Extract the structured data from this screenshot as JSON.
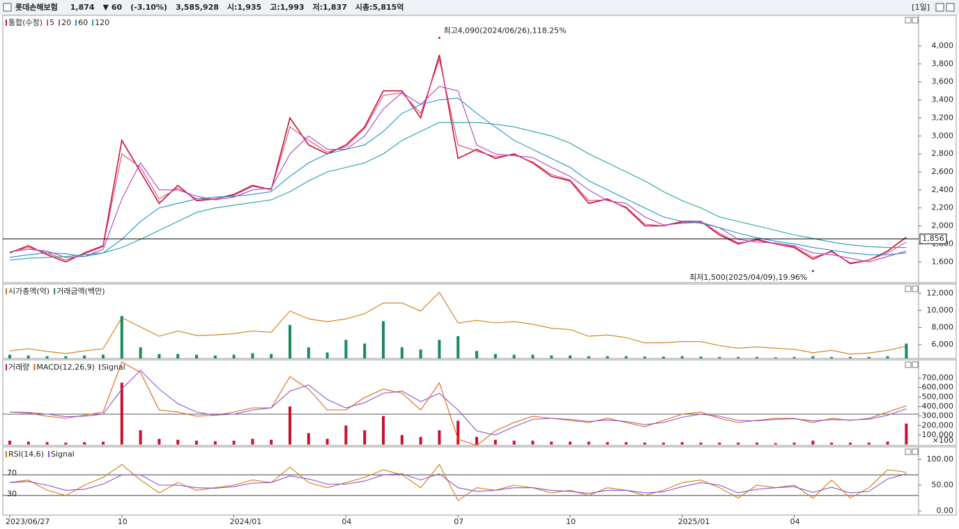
{
  "header": {
    "title": "롯데손해보험",
    "items": [
      {
        "text": "1,874",
        "color": "#1f3fa0"
      },
      {
        "text": "▼ 60",
        "color": "#1f3fa0"
      },
      {
        "text": "(-3.10%)",
        "color": "#1f3fa0"
      },
      {
        "text": "3,585,928",
        "color": "#222222"
      },
      {
        "text": "시:1,935",
        "color": "#222222"
      },
      {
        "text": "고:1,993",
        "color": "#222222"
      },
      {
        "text": "저:1,837",
        "color": "#222222"
      },
      {
        "text": "시총:5,815억",
        "color": "#222222"
      }
    ],
    "period": "[1일]"
  },
  "chart_data": [
    {
      "type": "line",
      "legend": "top-left",
      "series": [
        {
          "name": "통합(수정)",
          "color": "#c8102e",
          "values": [
            1700,
            1780,
            1680,
            1600,
            1700,
            1780,
            2950,
            2600,
            2250,
            2450,
            2280,
            2300,
            2350,
            2450,
            2400,
            3200,
            2900,
            2800,
            2900,
            3100,
            3500,
            3500,
            3200,
            3900,
            2750,
            2850,
            2750,
            2800,
            2700,
            2550,
            2500,
            2250,
            2300,
            2200,
            2000,
            2000,
            2050,
            2050,
            1900,
            1800,
            1850,
            1800,
            1760,
            1630,
            1720,
            1580,
            1620,
            1720,
            1874
          ]
        },
        {
          "name": "5",
          "color": "#e0457b",
          "values": [
            1710,
            1760,
            1700,
            1620,
            1690,
            1770,
            2800,
            2650,
            2300,
            2420,
            2300,
            2300,
            2340,
            2440,
            2400,
            3100,
            2950,
            2820,
            2880,
            3080,
            3450,
            3480,
            3250,
            3850,
            2900,
            2830,
            2770,
            2790,
            2710,
            2570,
            2510,
            2280,
            2290,
            2210,
            2020,
            2000,
            2040,
            2050,
            1920,
            1810,
            1840,
            1800,
            1770,
            1650,
            1710,
            1590,
            1620,
            1700,
            1820
          ]
        },
        {
          "name": "20",
          "color": "#b040c0",
          "values": [
            1710,
            1740,
            1720,
            1650,
            1660,
            1740,
            2300,
            2700,
            2400,
            2400,
            2330,
            2290,
            2320,
            2400,
            2420,
            2800,
            3000,
            2850,
            2850,
            3000,
            3300,
            3480,
            3350,
            3550,
            3500,
            2900,
            2800,
            2780,
            2760,
            2650,
            2550,
            2400,
            2280,
            2250,
            2100,
            2010,
            2030,
            2040,
            1980,
            1850,
            1820,
            1810,
            1780,
            1700,
            1680,
            1640,
            1600,
            1660,
            1720
          ]
        },
        {
          "name": "60",
          "color": "#1f8fd0",
          "values": [
            1650,
            1680,
            1700,
            1690,
            1660,
            1700,
            1850,
            2050,
            2200,
            2250,
            2300,
            2320,
            2330,
            2350,
            2380,
            2550,
            2700,
            2800,
            2850,
            2900,
            3050,
            3250,
            3350,
            3400,
            3420,
            3250,
            3100,
            2950,
            2850,
            2750,
            2650,
            2500,
            2400,
            2300,
            2200,
            2100,
            2050,
            2030,
            1980,
            1920,
            1870,
            1830,
            1800,
            1760,
            1730,
            1700,
            1680,
            1680,
            1700
          ]
        },
        {
          "name": "120",
          "color": "#20a0a0",
          "values": [
            1620,
            1640,
            1650,
            1660,
            1680,
            1700,
            1760,
            1850,
            1950,
            2050,
            2150,
            2200,
            2230,
            2260,
            2290,
            2380,
            2500,
            2600,
            2650,
            2700,
            2800,
            2950,
            3050,
            3150,
            3150,
            3150,
            3130,
            3100,
            3050,
            3000,
            2920,
            2800,
            2700,
            2600,
            2500,
            2380,
            2280,
            2200,
            2100,
            2050,
            2000,
            1950,
            1900,
            1860,
            1820,
            1790,
            1770,
            1760,
            1760
          ]
        }
      ],
      "ylim": [
        1370,
        4340
      ],
      "yticks": [
        {
          "value": 1600,
          "label": "1,600"
        },
        {
          "value": 1800,
          "label": "1,800"
        },
        {
          "value": 2000,
          "label": "2,000"
        },
        {
          "value": 2200,
          "label": "2,200"
        },
        {
          "value": 2400,
          "label": "2,400"
        },
        {
          "value": 2600,
          "label": "2,600"
        },
        {
          "value": 2800,
          "label": "2,800"
        },
        {
          "value": 3000,
          "label": "3,000"
        },
        {
          "value": 3200,
          "label": "3,200"
        },
        {
          "value": 3400,
          "label": "3,400"
        },
        {
          "value": 3600,
          "label": "3,600"
        },
        {
          "value": 3800,
          "label": "3,800"
        },
        {
          "value": 4000,
          "label": "4,000"
        }
      ],
      "annotations": [
        {
          "text": "최고4,090(2024/06/26),118.25%",
          "index": 23,
          "value": 4090,
          "color": "#c8102e"
        },
        {
          "text": "최저1,500(2025/04/09),19.96%",
          "index": 43,
          "value": 1500,
          "color": "#1f3fa0"
        }
      ],
      "price_line": {
        "value": 1856,
        "label": "1,856"
      }
    },
    {
      "type": "line",
      "legend": "top-left",
      "series": [
        {
          "name": "시가총액(억)",
          "color": "#d07a10",
          "values": [
            5275,
            5523,
            5213,
            4965,
            5275,
            5523,
            9154,
            8068,
            6982,
            7602,
            7075,
            7137,
            7292,
            7602,
            7447,
            9930,
            8999,
            8688,
            8999,
            9619,
            10861,
            10861,
            9930,
            12102,
            8533,
            8844,
            8533,
            8688,
            8378,
            7913,
            7758,
            6982,
            7137,
            6827,
            6206,
            6206,
            6361,
            6361,
            5896,
            5585,
            5741,
            5585,
            5461,
            5058,
            5337,
            4903,
            5027,
            5337,
            5815
          ]
        },
        {
          "name": "거래금액(백만)",
          "color": "#1a8a5a",
          "type": "bar",
          "axis": "y2",
          "values": [
            50,
            40,
            30,
            30,
            40,
            50,
            570,
            150,
            60,
            60,
            50,
            40,
            50,
            70,
            60,
            450,
            150,
            80,
            250,
            200,
            500,
            150,
            120,
            250,
            300,
            100,
            60,
            50,
            50,
            40,
            40,
            30,
            30,
            30,
            25,
            25,
            30,
            25,
            20,
            20,
            20,
            15,
            20,
            30,
            20,
            20,
            20,
            30,
            200
          ]
        }
      ],
      "ylim": [
        4390,
        13080
      ],
      "y2lim": [
        0,
        1000
      ],
      "yticks": [
        {
          "value": 6000,
          "label": "6,000"
        },
        {
          "value": 8000,
          "label": "8,000"
        },
        {
          "value": 10000,
          "label": "10,000"
        },
        {
          "value": 12000,
          "label": "12,000"
        }
      ]
    },
    {
      "type": "line",
      "legend": "top-left",
      "series": [
        {
          "name": "거래량",
          "color": "#c8102e",
          "type": "bar",
          "values": [
            40000,
            30000,
            25000,
            20000,
            25000,
            30000,
            650000,
            150000,
            60000,
            50000,
            40000,
            35000,
            40000,
            60000,
            50000,
            400000,
            120000,
            60000,
            200000,
            150000,
            300000,
            100000,
            80000,
            150000,
            250000,
            80000,
            50000,
            40000,
            40000,
            30000,
            30000,
            30000,
            25000,
            25000,
            20000,
            20000,
            25000,
            20000,
            20000,
            20000,
            20000,
            15000,
            20000,
            40000,
            20000,
            20000,
            20000,
            30000,
            220000
          ]
        },
        {
          "name": "MACD(12,26,9)",
          "color": "#e06010",
          "axis": "y2",
          "values": [
            10,
            5,
            -10,
            -20,
            -5,
            10,
            250,
            200,
            20,
            10,
            -10,
            -5,
            10,
            30,
            30,
            180,
            120,
            20,
            20,
            80,
            120,
            100,
            20,
            150,
            -120,
            -150,
            -80,
            -40,
            -10,
            -20,
            -30,
            -40,
            -20,
            -40,
            -60,
            -30,
            0,
            10,
            -20,
            -40,
            -30,
            -20,
            -20,
            -40,
            -20,
            -30,
            -20,
            10,
            40
          ]
        },
        {
          "name": "Signal",
          "color": "#8a50d0",
          "axis": "y2",
          "values": [
            10,
            8,
            0,
            -12,
            -10,
            0,
            120,
            210,
            120,
            50,
            10,
            -5,
            0,
            20,
            30,
            110,
            140,
            70,
            30,
            55,
            100,
            110,
            60,
            100,
            20,
            -80,
            -100,
            -60,
            -25,
            -20,
            -25,
            -35,
            -28,
            -35,
            -50,
            -40,
            -15,
            0,
            -10,
            -30,
            -32,
            -25,
            -22,
            -32,
            -26,
            -28,
            -24,
            -5,
            25
          ]
        }
      ],
      "ylim": [
        -10000,
        890000
      ],
      "y2lim": [
        -150,
        260
      ],
      "yticks": [
        {
          "value": 100000,
          "label": "100,000"
        },
        {
          "value": 200000,
          "label": "200,000"
        },
        {
          "value": 300000,
          "label": "300,000"
        },
        {
          "value": 400000,
          "label": "400,000"
        },
        {
          "value": 500000,
          "label": "500,000"
        },
        {
          "value": 600000,
          "label": "600,000"
        },
        {
          "value": 700000,
          "label": "700,000"
        }
      ],
      "unit_label": "×100"
    },
    {
      "type": "line",
      "legend": "top-left",
      "series": [
        {
          "name": "RSI(14,6)",
          "color": "#d07a10",
          "values": [
            55,
            60,
            40,
            30,
            50,
            65,
            90,
            60,
            35,
            55,
            40,
            45,
            50,
            60,
            55,
            85,
            55,
            45,
            55,
            65,
            80,
            70,
            45,
            90,
            20,
            45,
            40,
            50,
            45,
            35,
            40,
            30,
            45,
            40,
            30,
            40,
            55,
            60,
            45,
            25,
            50,
            45,
            50,
            25,
            60,
            25,
            45,
            80,
            75
          ]
        },
        {
          "name": "Signal",
          "color": "#8a50d0",
          "values": [
            55,
            57,
            50,
            40,
            42,
            52,
            70,
            70,
            50,
            50,
            45,
            44,
            47,
            54,
            55,
            68,
            62,
            52,
            52,
            58,
            70,
            72,
            60,
            72,
            45,
            38,
            40,
            45,
            45,
            40,
            38,
            34,
            40,
            40,
            35,
            37,
            47,
            55,
            50,
            35,
            42,
            45,
            47,
            36,
            46,
            35,
            38,
            62,
            72
          ]
        }
      ],
      "ylim": [
        -8.1,
        124.3
      ],
      "yticks": [
        {
          "value": 0,
          "label": "0.00"
        },
        {
          "value": 50,
          "label": "50.00"
        },
        {
          "value": 100,
          "label": "100.00"
        }
      ],
      "levels": [
        70,
        30
      ],
      "categories": [
        "2023/06/27",
        null,
        null,
        null,
        null,
        null,
        "10",
        null,
        null,
        null,
        null,
        null,
        "2024/01",
        null,
        null,
        null,
        null,
        null,
        "04",
        null,
        null,
        null,
        null,
        null,
        "07",
        null,
        null,
        null,
        null,
        null,
        "10",
        null,
        null,
        null,
        null,
        null,
        "2025/01",
        null,
        null,
        null,
        null,
        null,
        "04",
        null,
        null,
        null,
        null,
        null,
        null
      ]
    }
  ]
}
